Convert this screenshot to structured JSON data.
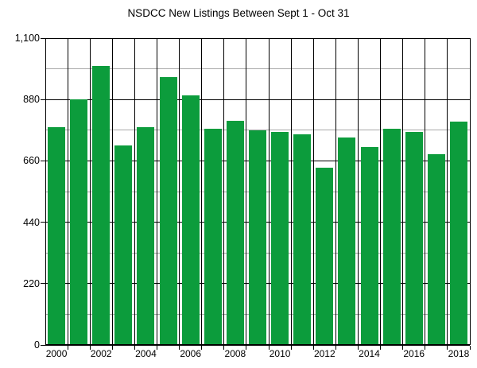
{
  "chart_data": {
    "type": "bar",
    "title": "NSDCC New Listings Between Sept 1 - Oct 31",
    "categories": [
      "2000",
      "2001",
      "2002",
      "2003",
      "2004",
      "2005",
      "2006",
      "2007",
      "2008",
      "2009",
      "2010",
      "2011",
      "2012",
      "2013",
      "2014",
      "2015",
      "2016",
      "2017",
      "2018"
    ],
    "values": [
      780,
      880,
      1000,
      715,
      780,
      960,
      895,
      775,
      805,
      770,
      765,
      755,
      635,
      745,
      710,
      775,
      765,
      685,
      800
    ],
    "xlabel": "",
    "ylabel": "",
    "ylim": [
      0,
      1100
    ],
    "y_ticks": [
      {
        "value": 0,
        "label": "0"
      },
      {
        "value": 220,
        "label": "220"
      },
      {
        "value": 440,
        "label": "440"
      },
      {
        "value": 660,
        "label": "660"
      },
      {
        "value": 880,
        "label": "880"
      },
      {
        "value": 1100,
        "label": "1,100"
      }
    ],
    "y_minor_gridlines": [
      110,
      330,
      550,
      770,
      990
    ],
    "x_tick_labels": [
      "2000",
      "2002",
      "2004",
      "2006",
      "2008",
      "2010",
      "2012",
      "2014",
      "2016",
      "2018"
    ],
    "legend_position": "none",
    "grid_on": true,
    "colors": {
      "bar": "#0c9c3c",
      "major_grid": "#000000",
      "minor_grid": "#a8a8a8",
      "text": "#000000",
      "background": "#ffffff"
    }
  }
}
